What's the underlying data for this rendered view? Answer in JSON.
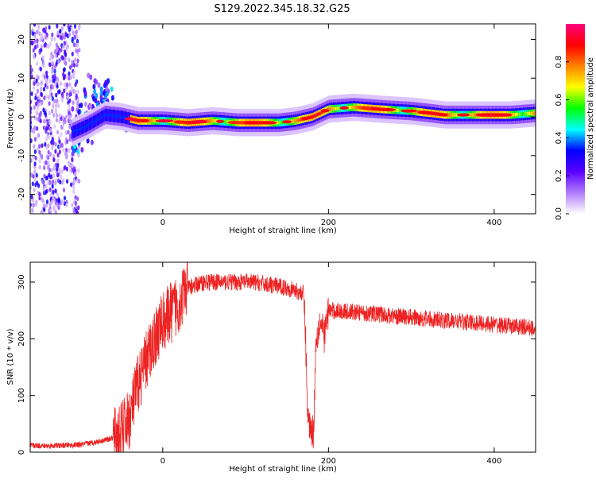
{
  "title": "S129.2022.345.18.32.G25",
  "chart_data": [
    {
      "type": "heatmap",
      "xlabel": "Height of straight line (km)",
      "ylabel": "Frequency (Hz)",
      "xlim": [
        -160,
        450
      ],
      "ylim": [
        -25,
        24
      ],
      "xticks": [
        0,
        200,
        400
      ],
      "yticks": [
        -20,
        -10,
        0,
        10,
        20
      ],
      "grid": false,
      "colorbar": {
        "label": "Normalized spectral amplitude",
        "range": [
          0,
          1
        ],
        "ticks": [
          "0.0",
          "0.2",
          "0.4",
          "0.6",
          "0.8"
        ],
        "colors": [
          "#ffffff",
          "#b07cff",
          "#5a00ff",
          "#0000ff",
          "#00ffff",
          "#00ff00",
          "#ffff00",
          "#ff8000",
          "#ff0000",
          "#ff0080"
        ]
      },
      "ridge": {
        "x": [
          -110,
          -90,
          -70,
          -50,
          -30,
          0,
          30,
          60,
          90,
          120,
          140,
          160,
          180,
          200,
          230,
          260,
          300,
          340,
          380,
          420,
          450
        ],
        "y": [
          -4,
          -2,
          0.5,
          0,
          -1,
          -1,
          -1.5,
          -1,
          -1.5,
          -1.5,
          -1.5,
          -1,
          0,
          2,
          2.5,
          2,
          1.5,
          0.5,
          0.5,
          0.5,
          1
        ]
      },
      "noise_region": {
        "x_start": -160,
        "x_end": -100
      }
    },
    {
      "type": "line",
      "xlabel": "Height of straight line (km)",
      "ylabel": "SNR (10 * v/v)",
      "xlim": [
        -160,
        450
      ],
      "ylim": [
        0,
        335
      ],
      "xticks": [
        0,
        200,
        400
      ],
      "yticks": [
        0,
        100,
        200,
        300
      ],
      "grid": false,
      "series": [
        {
          "color": "#ee2222",
          "x": [
            -160,
            -140,
            -120,
            -100,
            -80,
            -60,
            -50,
            -40,
            -30,
            -20,
            -10,
            0,
            10,
            20,
            30,
            50,
            70,
            90,
            110,
            130,
            150,
            170,
            172,
            175,
            180,
            182,
            185,
            190,
            195,
            200,
            220,
            250,
            280,
            300,
            320,
            340,
            360,
            380,
            400,
            420,
            440,
            450
          ],
          "y": [
            12,
            11,
            12,
            13,
            18,
            25,
            35,
            60,
            120,
            160,
            200,
            230,
            245,
            265,
            290,
            300,
            300,
            300,
            300,
            295,
            290,
            280,
            220,
            60,
            40,
            35,
            200,
            230,
            205,
            250,
            248,
            245,
            240,
            238,
            235,
            232,
            230,
            228,
            225,
            222,
            220,
            218
          ]
        }
      ]
    }
  ]
}
